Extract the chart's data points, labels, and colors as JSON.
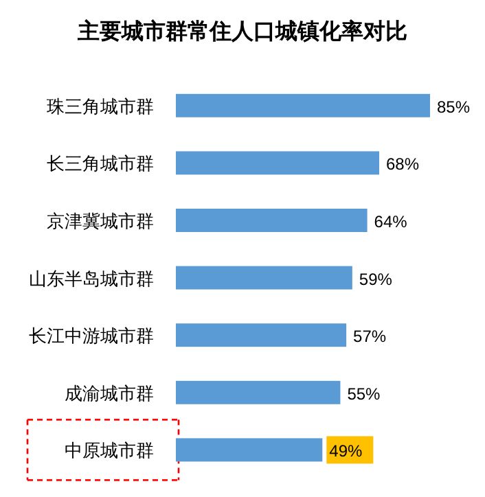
{
  "chart_data": {
    "type": "bar",
    "orientation": "horizontal",
    "title": "主要城市群常住人口城镇化率对比",
    "categories": [
      "珠三角城市群",
      "长三角城市群",
      "京津冀城市群",
      "山东半岛城市群",
      "长江中游城市群",
      "成渝城市群",
      "中原城市群"
    ],
    "values": [
      85,
      68,
      64,
      59,
      57,
      55,
      49
    ],
    "value_labels": [
      "85%",
      "68%",
      "64%",
      "59%",
      "57%",
      "55%",
      "49%"
    ],
    "color": "#5b9bd5",
    "bands": [
      {
        "axis": "y",
        "from": "中原城市群",
        "to": "中原城市群"
      }
    ]
  }
}
